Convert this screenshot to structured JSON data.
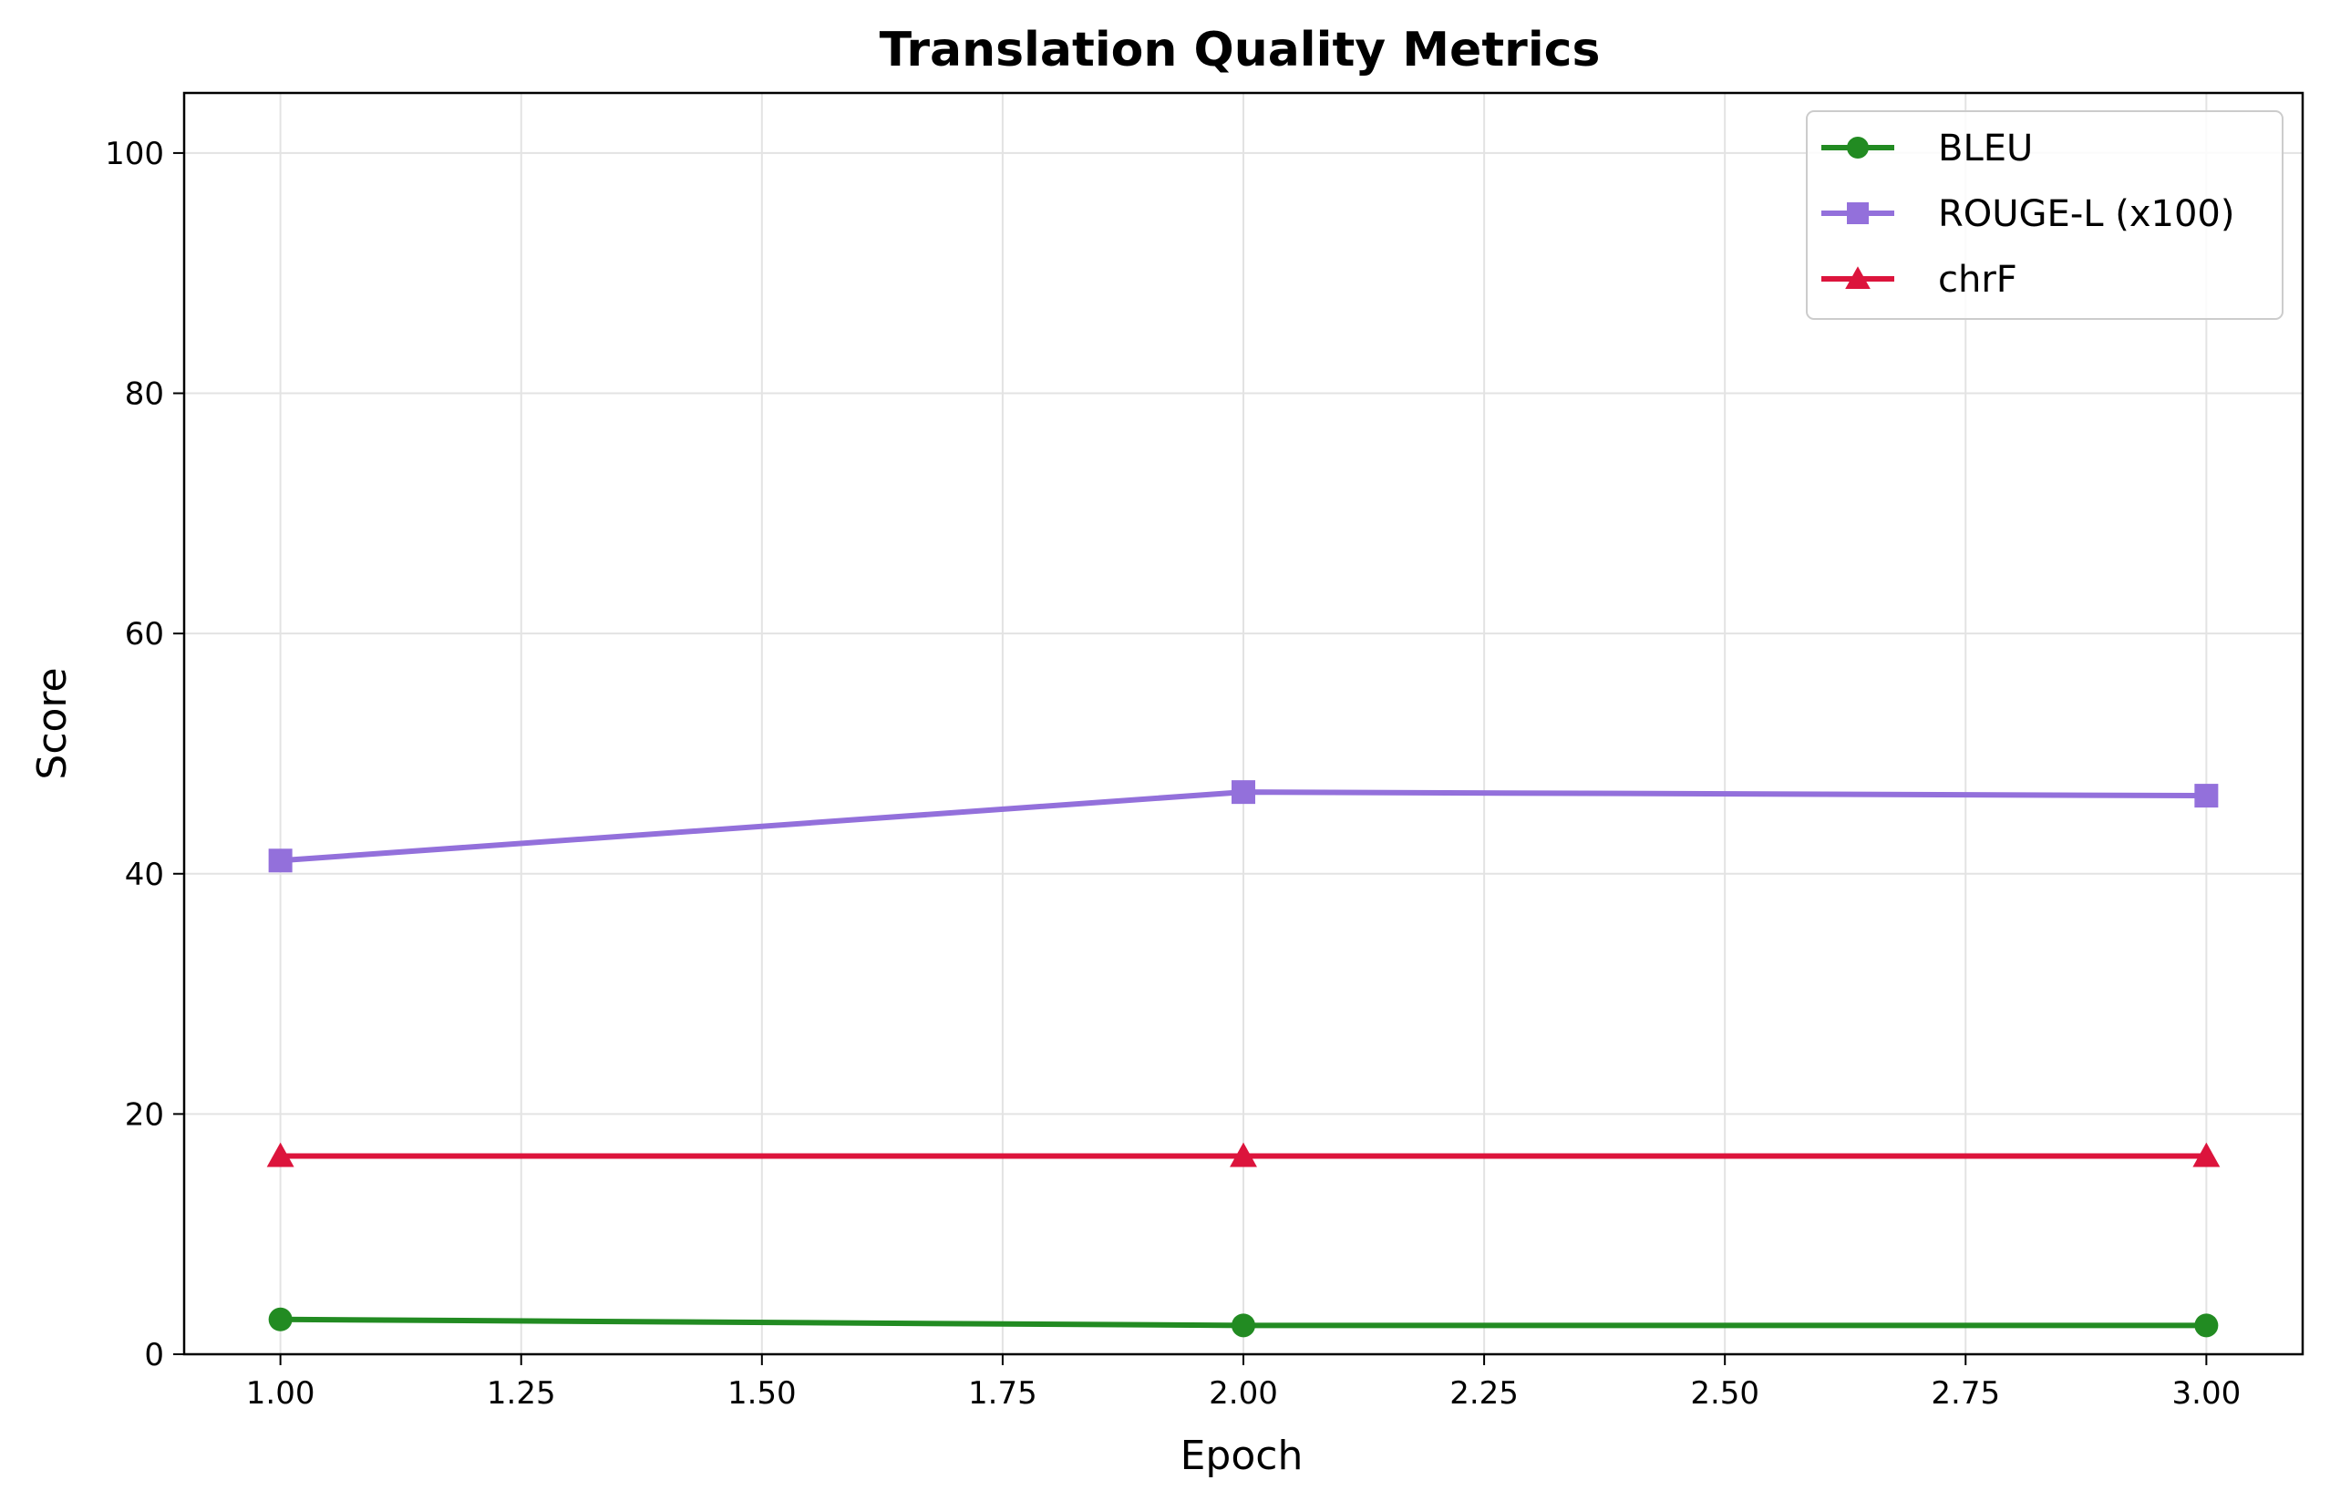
{
  "chart_data": {
    "type": "line",
    "title": "Translation Quality Metrics",
    "xlabel": "Epoch",
    "ylabel": "Score",
    "x": [
      1.0,
      2.0,
      3.0
    ],
    "xlim": [
      0.9,
      3.1
    ],
    "ylim": [
      0,
      105
    ],
    "xticks": [
      "1.00",
      "1.25",
      "1.50",
      "1.75",
      "2.00",
      "2.25",
      "2.50",
      "2.75",
      "3.00"
    ],
    "xtick_values": [
      1.0,
      1.25,
      1.5,
      1.75,
      2.0,
      2.25,
      2.5,
      2.75,
      3.0
    ],
    "yticks": [
      "0",
      "20",
      "40",
      "60",
      "80",
      "100"
    ],
    "ytick_values": [
      0,
      20,
      40,
      60,
      80,
      100
    ],
    "grid": true,
    "legend_position": "top-right",
    "series": [
      {
        "name": "BLEU",
        "values": [
          2.9,
          2.4,
          2.4
        ],
        "color": "#228B22",
        "marker": "circle"
      },
      {
        "name": "ROUGE-L (x100)",
        "values": [
          41.1,
          46.8,
          46.5
        ],
        "color": "#9370DB",
        "marker": "square"
      },
      {
        "name": "chrF",
        "values": [
          16.5,
          16.5,
          16.5
        ],
        "color": "#DC143C",
        "marker": "triangle"
      }
    ]
  }
}
